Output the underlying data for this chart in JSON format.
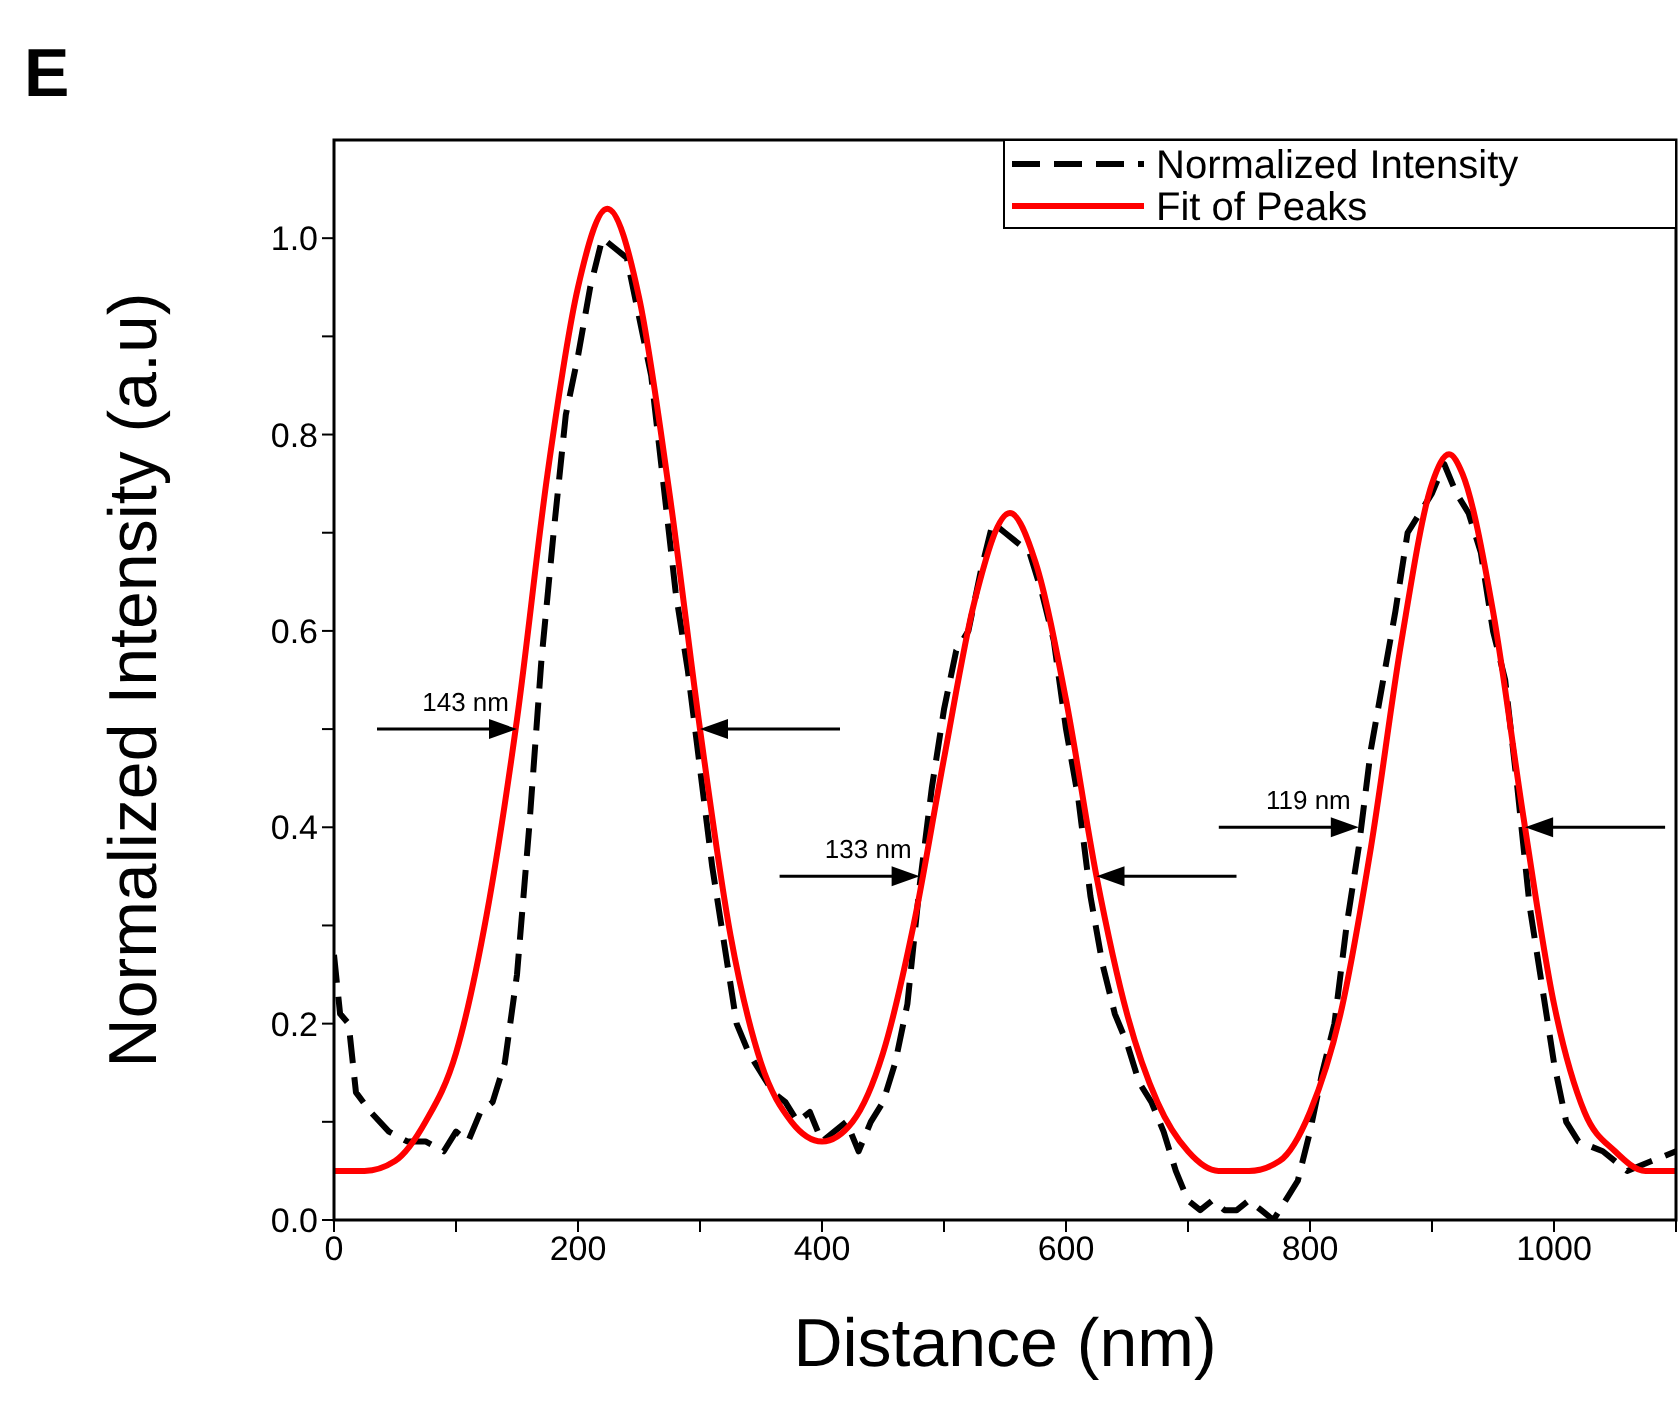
{
  "chart_data": {
    "type": "line",
    "title": "E",
    "xlabel": "Distance (nm)",
    "ylabel": "Normalized Intensity (a.u)",
    "xlim": [
      0,
      1100
    ],
    "ylim": [
      0,
      1.1
    ],
    "xticks": [
      0,
      {
        "value": 100,
        "label": null
      },
      200,
      {
        "value": 300,
        "label": null
      },
      400,
      {
        "value": 500,
        "label": null
      },
      600,
      {
        "value": 700,
        "label": null
      },
      800,
      {
        "value": 900,
        "label": null
      },
      1000,
      {
        "value": 1100,
        "label": null
      }
    ],
    "yticks": [
      {
        "value": 0,
        "label": "0.0"
      },
      {
        "value": 0.1,
        "label": null
      },
      {
        "value": 0.2,
        "label": "0.2"
      },
      {
        "value": 0.3,
        "label": null
      },
      {
        "value": 0.4,
        "label": "0.4"
      },
      {
        "value": 0.5,
        "label": null
      },
      {
        "value": 0.6,
        "label": "0.6"
      },
      {
        "value": 0.7,
        "label": null
      },
      {
        "value": 0.8,
        "label": "0.8"
      },
      {
        "value": 0.9,
        "label": null
      },
      {
        "value": 1.0,
        "label": "1.0"
      }
    ],
    "legend": "top right",
    "marker": "none",
    "series": [
      {
        "name": "Normalized Intensity",
        "color": "#000000",
        "line_style": "dashed",
        "x": [
          0,
          5,
          12,
          18,
          30,
          45,
          60,
          75,
          90,
          100,
          110,
          120,
          130,
          140,
          150,
          160,
          170,
          180,
          190,
          200,
          210,
          220,
          230,
          240,
          250,
          260,
          270,
          280,
          290,
          300,
          310,
          320,
          330,
          340,
          350,
          360,
          370,
          380,
          390,
          400,
          410,
          420,
          430,
          440,
          450,
          460,
          470,
          480,
          490,
          500,
          510,
          520,
          530,
          540,
          550,
          560,
          570,
          580,
          590,
          600,
          610,
          620,
          630,
          640,
          650,
          660,
          670,
          680,
          690,
          700,
          710,
          720,
          730,
          740,
          750,
          760,
          770,
          780,
          790,
          800,
          810,
          820,
          830,
          840,
          850,
          860,
          870,
          880,
          890,
          900,
          910,
          920,
          930,
          940,
          950,
          960,
          970,
          980,
          990,
          1000,
          1010,
          1020,
          1040,
          1060,
          1080,
          1100
        ],
        "values": [
          0.27,
          0.21,
          0.2,
          0.13,
          0.11,
          0.09,
          0.08,
          0.08,
          0.07,
          0.09,
          0.08,
          0.11,
          0.12,
          0.16,
          0.25,
          0.4,
          0.57,
          0.7,
          0.82,
          0.88,
          0.95,
          1.0,
          0.99,
          0.98,
          0.92,
          0.86,
          0.75,
          0.64,
          0.56,
          0.46,
          0.36,
          0.28,
          0.2,
          0.17,
          0.15,
          0.13,
          0.12,
          0.1,
          0.11,
          0.08,
          0.09,
          0.1,
          0.07,
          0.1,
          0.12,
          0.16,
          0.22,
          0.34,
          0.44,
          0.52,
          0.58,
          0.6,
          0.66,
          0.71,
          0.7,
          0.69,
          0.68,
          0.64,
          0.59,
          0.5,
          0.43,
          0.33,
          0.26,
          0.21,
          0.18,
          0.14,
          0.12,
          0.09,
          0.05,
          0.02,
          0.01,
          0.02,
          0.01,
          0.01,
          0.02,
          0.01,
          0.0,
          0.02,
          0.04,
          0.09,
          0.15,
          0.2,
          0.3,
          0.38,
          0.48,
          0.55,
          0.62,
          0.7,
          0.72,
          0.74,
          0.77,
          0.74,
          0.72,
          0.68,
          0.6,
          0.55,
          0.44,
          0.32,
          0.24,
          0.16,
          0.1,
          0.08,
          0.07,
          0.05,
          0.06,
          0.07
        ]
      },
      {
        "name": "Fit of Peaks",
        "color": "#ff0000",
        "line_style": "solid",
        "x": [
          0,
          25,
          50,
          75,
          100,
          125,
          150,
          175,
          200,
          224,
          250,
          275,
          300,
          325,
          350,
          375,
          400,
          425,
          450,
          475,
          500,
          525,
          554,
          575,
          600,
          625,
          650,
          675,
          700,
          725,
          750,
          775,
          800,
          825,
          850,
          875,
          900,
          914,
          925,
          950,
          975,
          1000,
          1025,
          1050,
          1075,
          1100
        ],
        "values": [
          0.05,
          0.05,
          0.06,
          0.1,
          0.17,
          0.31,
          0.51,
          0.76,
          0.95,
          1.03,
          0.94,
          0.74,
          0.5,
          0.29,
          0.16,
          0.1,
          0.08,
          0.1,
          0.17,
          0.3,
          0.47,
          0.63,
          0.72,
          0.67,
          0.53,
          0.35,
          0.21,
          0.12,
          0.07,
          0.05,
          0.05,
          0.06,
          0.11,
          0.21,
          0.38,
          0.59,
          0.75,
          0.78,
          0.76,
          0.62,
          0.41,
          0.22,
          0.11,
          0.07,
          0.05,
          0.05
        ]
      }
    ],
    "annotations": [
      {
        "text": "143 nm",
        "x": 150,
        "y": 0.5
      },
      {
        "text": "133 nm",
        "x": 480,
        "y": 0.35
      },
      {
        "text": "119 nm",
        "x": 840,
        "y": 0.4
      }
    ]
  }
}
